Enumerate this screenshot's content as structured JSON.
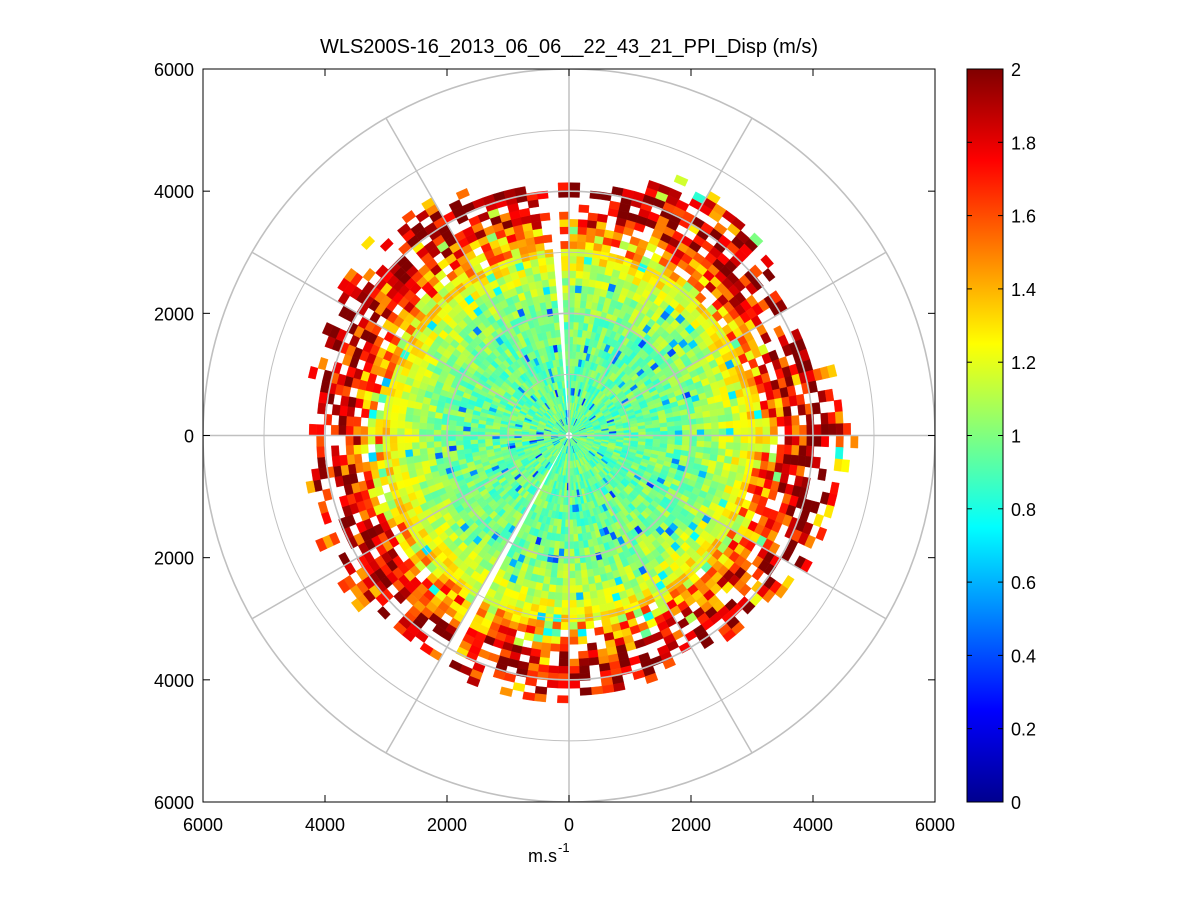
{
  "chart_data": {
    "type": "heatmap",
    "subtype": "polar PPI scan (range rings and radial spokes)",
    "title": "WLS200S-16_2013_06_06__22_43_21_PPI_Disp (m/s)",
    "xlabel": "m.s-1",
    "xlabel_main": "m.s",
    "xlabel_sup": "-1",
    "ylabel": "",
    "xlim": [
      -6000,
      6000
    ],
    "ylim": [
      -6000,
      6000
    ],
    "x_tick_labels": [
      "6000",
      "4000",
      "2000",
      "0",
      "2000",
      "4000",
      "6000"
    ],
    "y_tick_labels": [
      "6000",
      "4000",
      "2000",
      "0",
      "2000",
      "4000",
      "6000"
    ],
    "range_rings_m": [
      1000,
      2000,
      3000,
      4000,
      5000,
      6000
    ],
    "spoke_step_deg": 30,
    "colorbar": {
      "colormap": "jet",
      "clim": [
        0,
        2
      ],
      "tick_labels": [
        "0",
        "0.2",
        "0.4",
        "0.6",
        "0.8",
        "1",
        "1.2",
        "1.4",
        "1.6",
        "1.8",
        "2"
      ]
    },
    "value_profile": {
      "description": "dispersion (m/s) by range; mostly ~1.0 near the center rising to ~2 at the outer edge of the data",
      "range_m": [
        0,
        1000,
        2000,
        2500,
        3000,
        3500,
        4000,
        4500
      ],
      "mean_value": [
        0.95,
        0.95,
        1.0,
        1.1,
        1.3,
        1.7,
        1.95,
        1.5
      ]
    },
    "data_extent_m_by_azimuth": {
      "azimuth_deg": [
        0,
        30,
        60,
        90,
        120,
        150,
        180,
        210,
        240,
        270,
        300,
        330
      ],
      "max_range_m": [
        4000,
        4600,
        4000,
        4500,
        4300,
        4000,
        4300,
        4200,
        4300,
        4200,
        4400,
        4300
      ]
    },
    "gaps_deg": [
      {
        "from": 354,
        "to": 357
      },
      {
        "from": 207,
        "to": 211
      }
    ]
  }
}
